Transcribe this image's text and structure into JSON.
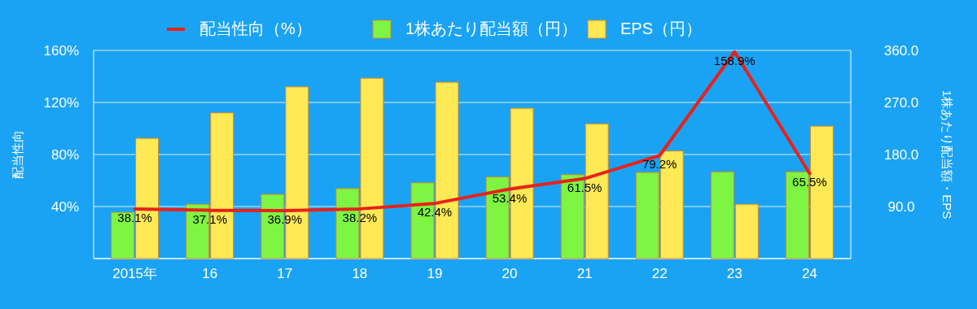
{
  "chart_data": {
    "type": "bar",
    "categories": [
      "2015年",
      "16",
      "17",
      "18",
      "19",
      "20",
      "21",
      "22",
      "23",
      "24"
    ],
    "ylabel": "配当性向",
    "y2label": "1株あたり配当額・EPS",
    "ylim": [
      0,
      160
    ],
    "yticks": [
      {
        "value": 0,
        "label": null
      },
      {
        "value": 40,
        "label": "40%"
      },
      {
        "value": 80,
        "label": "80%"
      },
      {
        "value": 120,
        "label": "120%"
      },
      {
        "value": 160,
        "label": "160%"
      }
    ],
    "y2lim": [
      0,
      360
    ],
    "y2ticks": [
      {
        "value": 0,
        "label": null
      },
      {
        "value": 90,
        "label": "90.0"
      },
      {
        "value": 180,
        "label": "180.0"
      },
      {
        "value": 270,
        "label": "270.0"
      },
      {
        "value": 360,
        "label": "360.0"
      }
    ],
    "grid": "y",
    "legend": "top",
    "series": [
      {
        "name": "配当性向（%）",
        "type": "line",
        "color": "#e8221a",
        "values": [
          38.1,
          37.1,
          36.9,
          38.2,
          42.4,
          53.4,
          61.5,
          79.2,
          158.9,
          65.5
        ],
        "value_labels": [
          "38.1%",
          "37.1%",
          "36.9%",
          "38.2%",
          "42.4%",
          "53.4%",
          "61.5%",
          "79.2%",
          "158.9%",
          "65.5%"
        ]
      },
      {
        "name": "1株あたり配当額（円）",
        "axis": "y2",
        "color": "#7ef542",
        "values": [
          80,
          94,
          111,
          121,
          131,
          141,
          145,
          149,
          150,
          150
        ]
      },
      {
        "name": "EPS（円）",
        "axis": "y2",
        "color": "#ffe955",
        "values": [
          208,
          252,
          297,
          312,
          305,
          260,
          233,
          186,
          94,
          229
        ]
      }
    ]
  }
}
